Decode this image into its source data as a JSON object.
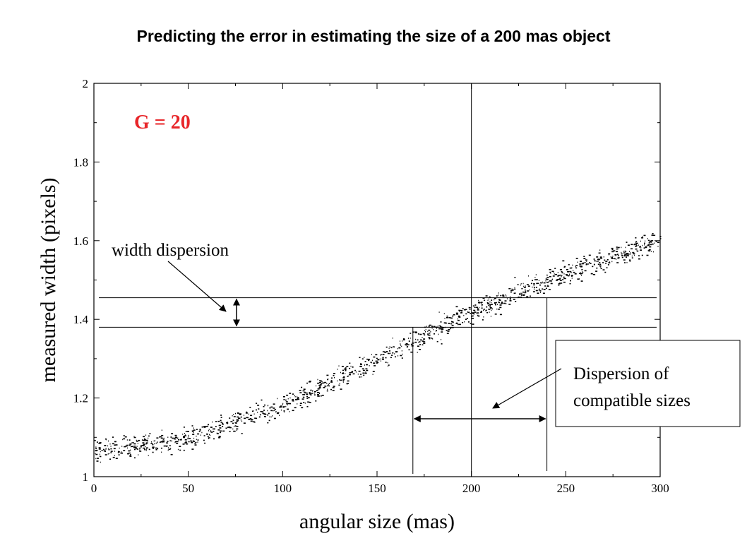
{
  "title": "Predicting the error in estimating the size of a 200 mas object",
  "chart_data": {
    "type": "scatter",
    "title": "Predicting the error in estimating the size of a 200 mas object",
    "xlabel": "angular size (mas)",
    "ylabel": "measured width (pixels)",
    "xlim": [
      0,
      300
    ],
    "ylim": [
      1,
      2
    ],
    "x_ticks": [
      "0",
      "50",
      "100",
      "150",
      "200",
      "250",
      "300"
    ],
    "y_ticks": [
      "1",
      "1.2",
      "1.4",
      "1.6",
      "1.8",
      "2"
    ],
    "grid": false,
    "series": [
      {
        "description_points": "dense band of simulated measurements",
        "trend_x": [
          0,
          25,
          50,
          75,
          100,
          125,
          150,
          175,
          200,
          225,
          250,
          275,
          300
        ],
        "trend_y": [
          1.07,
          1.08,
          1.1,
          1.14,
          1.18,
          1.24,
          1.3,
          1.36,
          1.42,
          1.47,
          1.52,
          1.56,
          1.6
        ],
        "spread": 0.02,
        "color": "#000000"
      }
    ],
    "annotations": {
      "label_G": "G = 20",
      "label_width": "width dispersion",
      "label_sizes_line1": "Dispersion of",
      "label_sizes_line2": "compatible sizes",
      "h_lines_y": [
        1.455,
        1.38
      ],
      "v_line_true_x": 200,
      "v_lines_range_x": [
        169,
        240
      ],
      "label_color": "#e8262a"
    }
  }
}
